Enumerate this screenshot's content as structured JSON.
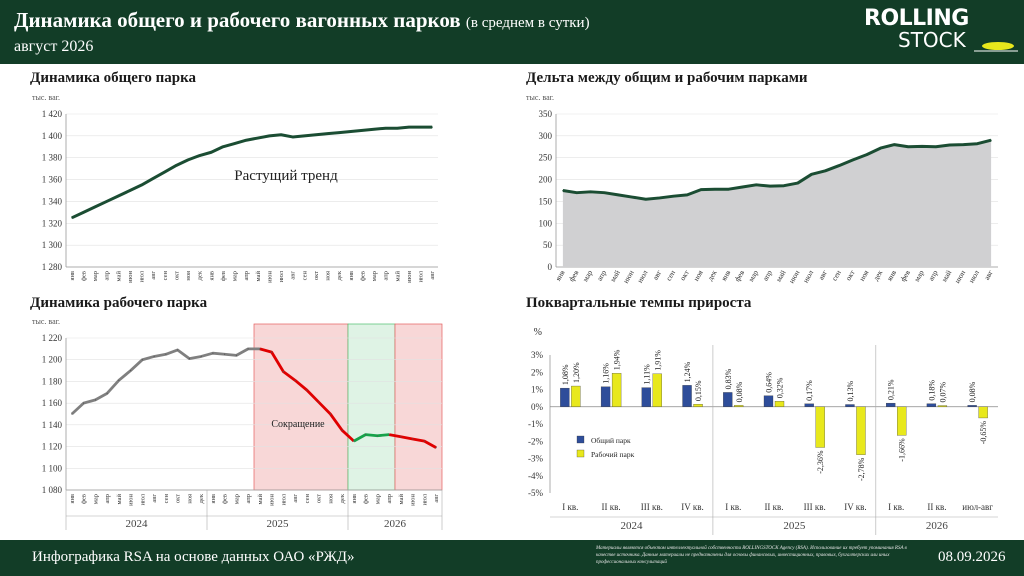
{
  "header": {
    "title": "Динамика общего и рабочего вагонных парков",
    "subtitle": "(в среднем в сутки)",
    "period": "август 2026",
    "logo_line1": "ROLLING",
    "logo_line2": "STOCK"
  },
  "footer": {
    "credit": "Инфографика RSA на основе данных ОАО «РЖД»",
    "note": "Материалы являются объектом интеллектуальной собственности ROLLINGSTOCK Agency (RSA). Использование их требует упоминания RSA в качестве источника. Данные материалы не предназначены для основы финансовых, инвестиционных, правовых, бухгалтерских или иных профессиональных консультаций",
    "date": "08.09.2026"
  },
  "chart_data": [
    {
      "type": "line",
      "title": "Динамика общего парка",
      "ylabel": "тыс. ваг.",
      "ylim": [
        1280,
        1420
      ],
      "yticks": [
        "1 280",
        "1 300",
        "1 320",
        "1 340",
        "1 360",
        "1 380",
        "1 400",
        "1 420"
      ],
      "x": [
        "янв",
        "фев",
        "мар",
        "апр",
        "май",
        "июн",
        "июл",
        "авг",
        "сен",
        "окт",
        "ноя",
        "дек",
        "янв",
        "фев",
        "мар",
        "апр",
        "май",
        "июн",
        "июл",
        "авг",
        "сен",
        "окт",
        "ноя",
        "дек",
        "янв",
        "фев",
        "мар",
        "апр",
        "май",
        "июн",
        "июл",
        "авг"
      ],
      "values": [
        1325,
        1330,
        1335,
        1340,
        1345,
        1350,
        1355,
        1361,
        1367,
        1373,
        1378,
        1382,
        1385,
        1390,
        1393,
        1396,
        1398,
        1400,
        1401,
        1399,
        1400,
        1401,
        1402,
        1403,
        1404,
        1405,
        1406,
        1407,
        1407,
        1408,
        1408,
        1408
      ],
      "annotation": "Растущий тренд",
      "color": "#1b4d33"
    },
    {
      "type": "area",
      "title": "Дельта между общим и рабочим парками",
      "ylabel": "тыс. ваг.",
      "ylim": [
        0,
        350
      ],
      "yticks": [
        "0",
        "50",
        "100",
        "150",
        "200",
        "250",
        "300",
        "350"
      ],
      "x": [
        "янв",
        "фев",
        "мар",
        "апр",
        "май",
        "июн",
        "июл",
        "авг",
        "сен",
        "окт",
        "ноя",
        "дек",
        "янв",
        "фев",
        "мар",
        "апр",
        "май",
        "июн",
        "июл",
        "авг",
        "сен",
        "окт",
        "ноя",
        "дек",
        "янв",
        "фев",
        "мар",
        "апр",
        "май",
        "июн",
        "июл",
        "авг"
      ],
      "values": [
        175,
        170,
        172,
        170,
        165,
        160,
        155,
        158,
        162,
        165,
        177,
        178,
        178,
        183,
        188,
        185,
        186,
        192,
        212,
        220,
        232,
        245,
        257,
        272,
        280,
        275,
        276,
        275,
        279,
        280,
        282,
        290
      ],
      "color": "#1b4d33",
      "fill": "#d0d0d2"
    },
    {
      "type": "line",
      "title": "Динамика рабочего парка",
      "ylabel": "тыс. ваг.",
      "ylim": [
        1080,
        1220
      ],
      "yticks": [
        "1 080",
        "1 100",
        "1 120",
        "1 140",
        "1 160",
        "1 180",
        "1 200",
        "1 220"
      ],
      "x": [
        "янв",
        "фев",
        "мар",
        "апр",
        "май",
        "июн",
        "июл",
        "авг",
        "сен",
        "окт",
        "ноя",
        "дек",
        "янв",
        "фев",
        "мар",
        "апр",
        "май",
        "июн",
        "июл",
        "авг",
        "сен",
        "окт",
        "ноя",
        "дек",
        "янв",
        "фев",
        "мар",
        "апр",
        "май",
        "июн",
        "июл",
        "авг"
      ],
      "values": [
        1150,
        1160,
        1163,
        1169,
        1181,
        1190,
        1200,
        1203,
        1205,
        1209,
        1201,
        1203,
        1206,
        1205,
        1204,
        1210,
        1210,
        1207,
        1189,
        1181,
        1172,
        1161,
        1150,
        1135,
        1125,
        1131,
        1130,
        1131,
        1129,
        1127,
        1125,
        1119
      ],
      "years": [
        "2024",
        "2025",
        "2026"
      ],
      "annotation": "Сокращение",
      "colors": {
        "grey": "#808080",
        "red": "#e00000",
        "green": "#16a34a"
      }
    },
    {
      "type": "bar",
      "title": "Поквартальные темпы прироста",
      "ylabel": "%",
      "ylim": [
        -5,
        3
      ],
      "yticks": [
        "-5%",
        "-4%",
        "-3%",
        "-2%",
        "-1%",
        "0%",
        "1%",
        "2%",
        "3%"
      ],
      "categories": [
        "I кв.",
        "II кв.",
        "III кв.",
        "IV кв.",
        "I кв.",
        "II кв.",
        "III кв.",
        "IV кв.",
        "I кв.",
        "II кв.",
        "июл-авг"
      ],
      "years": [
        "2024",
        "2025",
        "2026"
      ],
      "series": [
        {
          "name": "Общий парк",
          "color": "#2e4d9a",
          "values": [
            1.08,
            1.16,
            1.11,
            1.24,
            0.83,
            0.64,
            0.17,
            0.13,
            0.21,
            0.18,
            0.08
          ],
          "labels": [
            "1,08%",
            "1,16%",
            "1,11%",
            "1,24%",
            "0,83%",
            "0,64%",
            "0,17%",
            "0,13%",
            "0,21%",
            "0,18%",
            "0,08%"
          ]
        },
        {
          "name": "Рабочий парк",
          "color": "#e8e81c",
          "values": [
            1.2,
            1.94,
            1.91,
            0.15,
            0.08,
            0.32,
            -2.36,
            -2.78,
            -1.66,
            0.07,
            -0.65
          ],
          "labels": [
            "1,20%",
            "1,94%",
            "1,91%",
            "0,15%",
            "0,08%",
            "0,32%",
            "-2,36%",
            "-2,78%",
            "-1,66%",
            "0,07%",
            "-0,65%"
          ]
        }
      ]
    }
  ]
}
